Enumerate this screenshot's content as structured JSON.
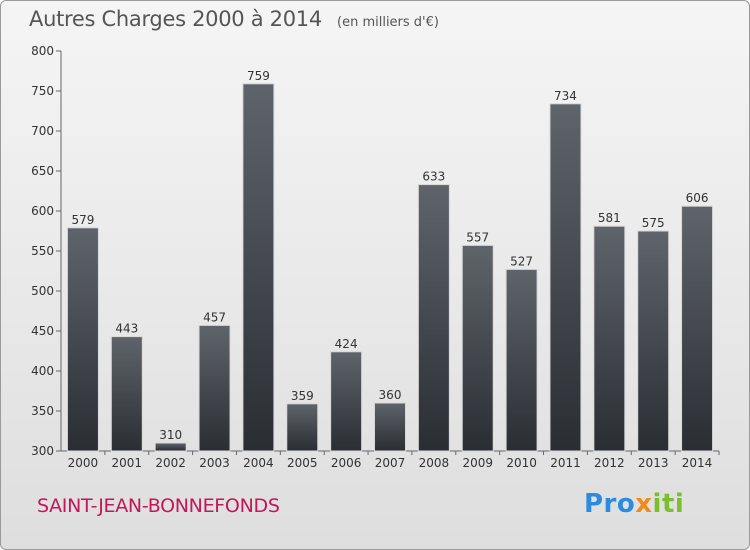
{
  "chart_data": {
    "type": "bar",
    "title": "Autres Charges 2000 à 2014",
    "subtitle": "(en milliers d'€)",
    "categories": [
      "2000",
      "2001",
      "2002",
      "2003",
      "2004",
      "2005",
      "2006",
      "2007",
      "2008",
      "2009",
      "2010",
      "2011",
      "2012",
      "2013",
      "2014"
    ],
    "values": [
      579,
      443,
      310,
      457,
      759,
      359,
      424,
      360,
      633,
      557,
      527,
      734,
      581,
      575,
      606
    ],
    "ylim": [
      300,
      800
    ],
    "yticks": [
      300,
      350,
      400,
      450,
      500,
      550,
      600,
      650,
      700,
      750,
      800
    ],
    "grid": false,
    "bar_color": "#3b3f45"
  },
  "footer": {
    "commune": "SAINT-JEAN-BONNEFONDS",
    "logo": {
      "p1": "Pro",
      "p2": "x",
      "p3": "iti"
    }
  }
}
